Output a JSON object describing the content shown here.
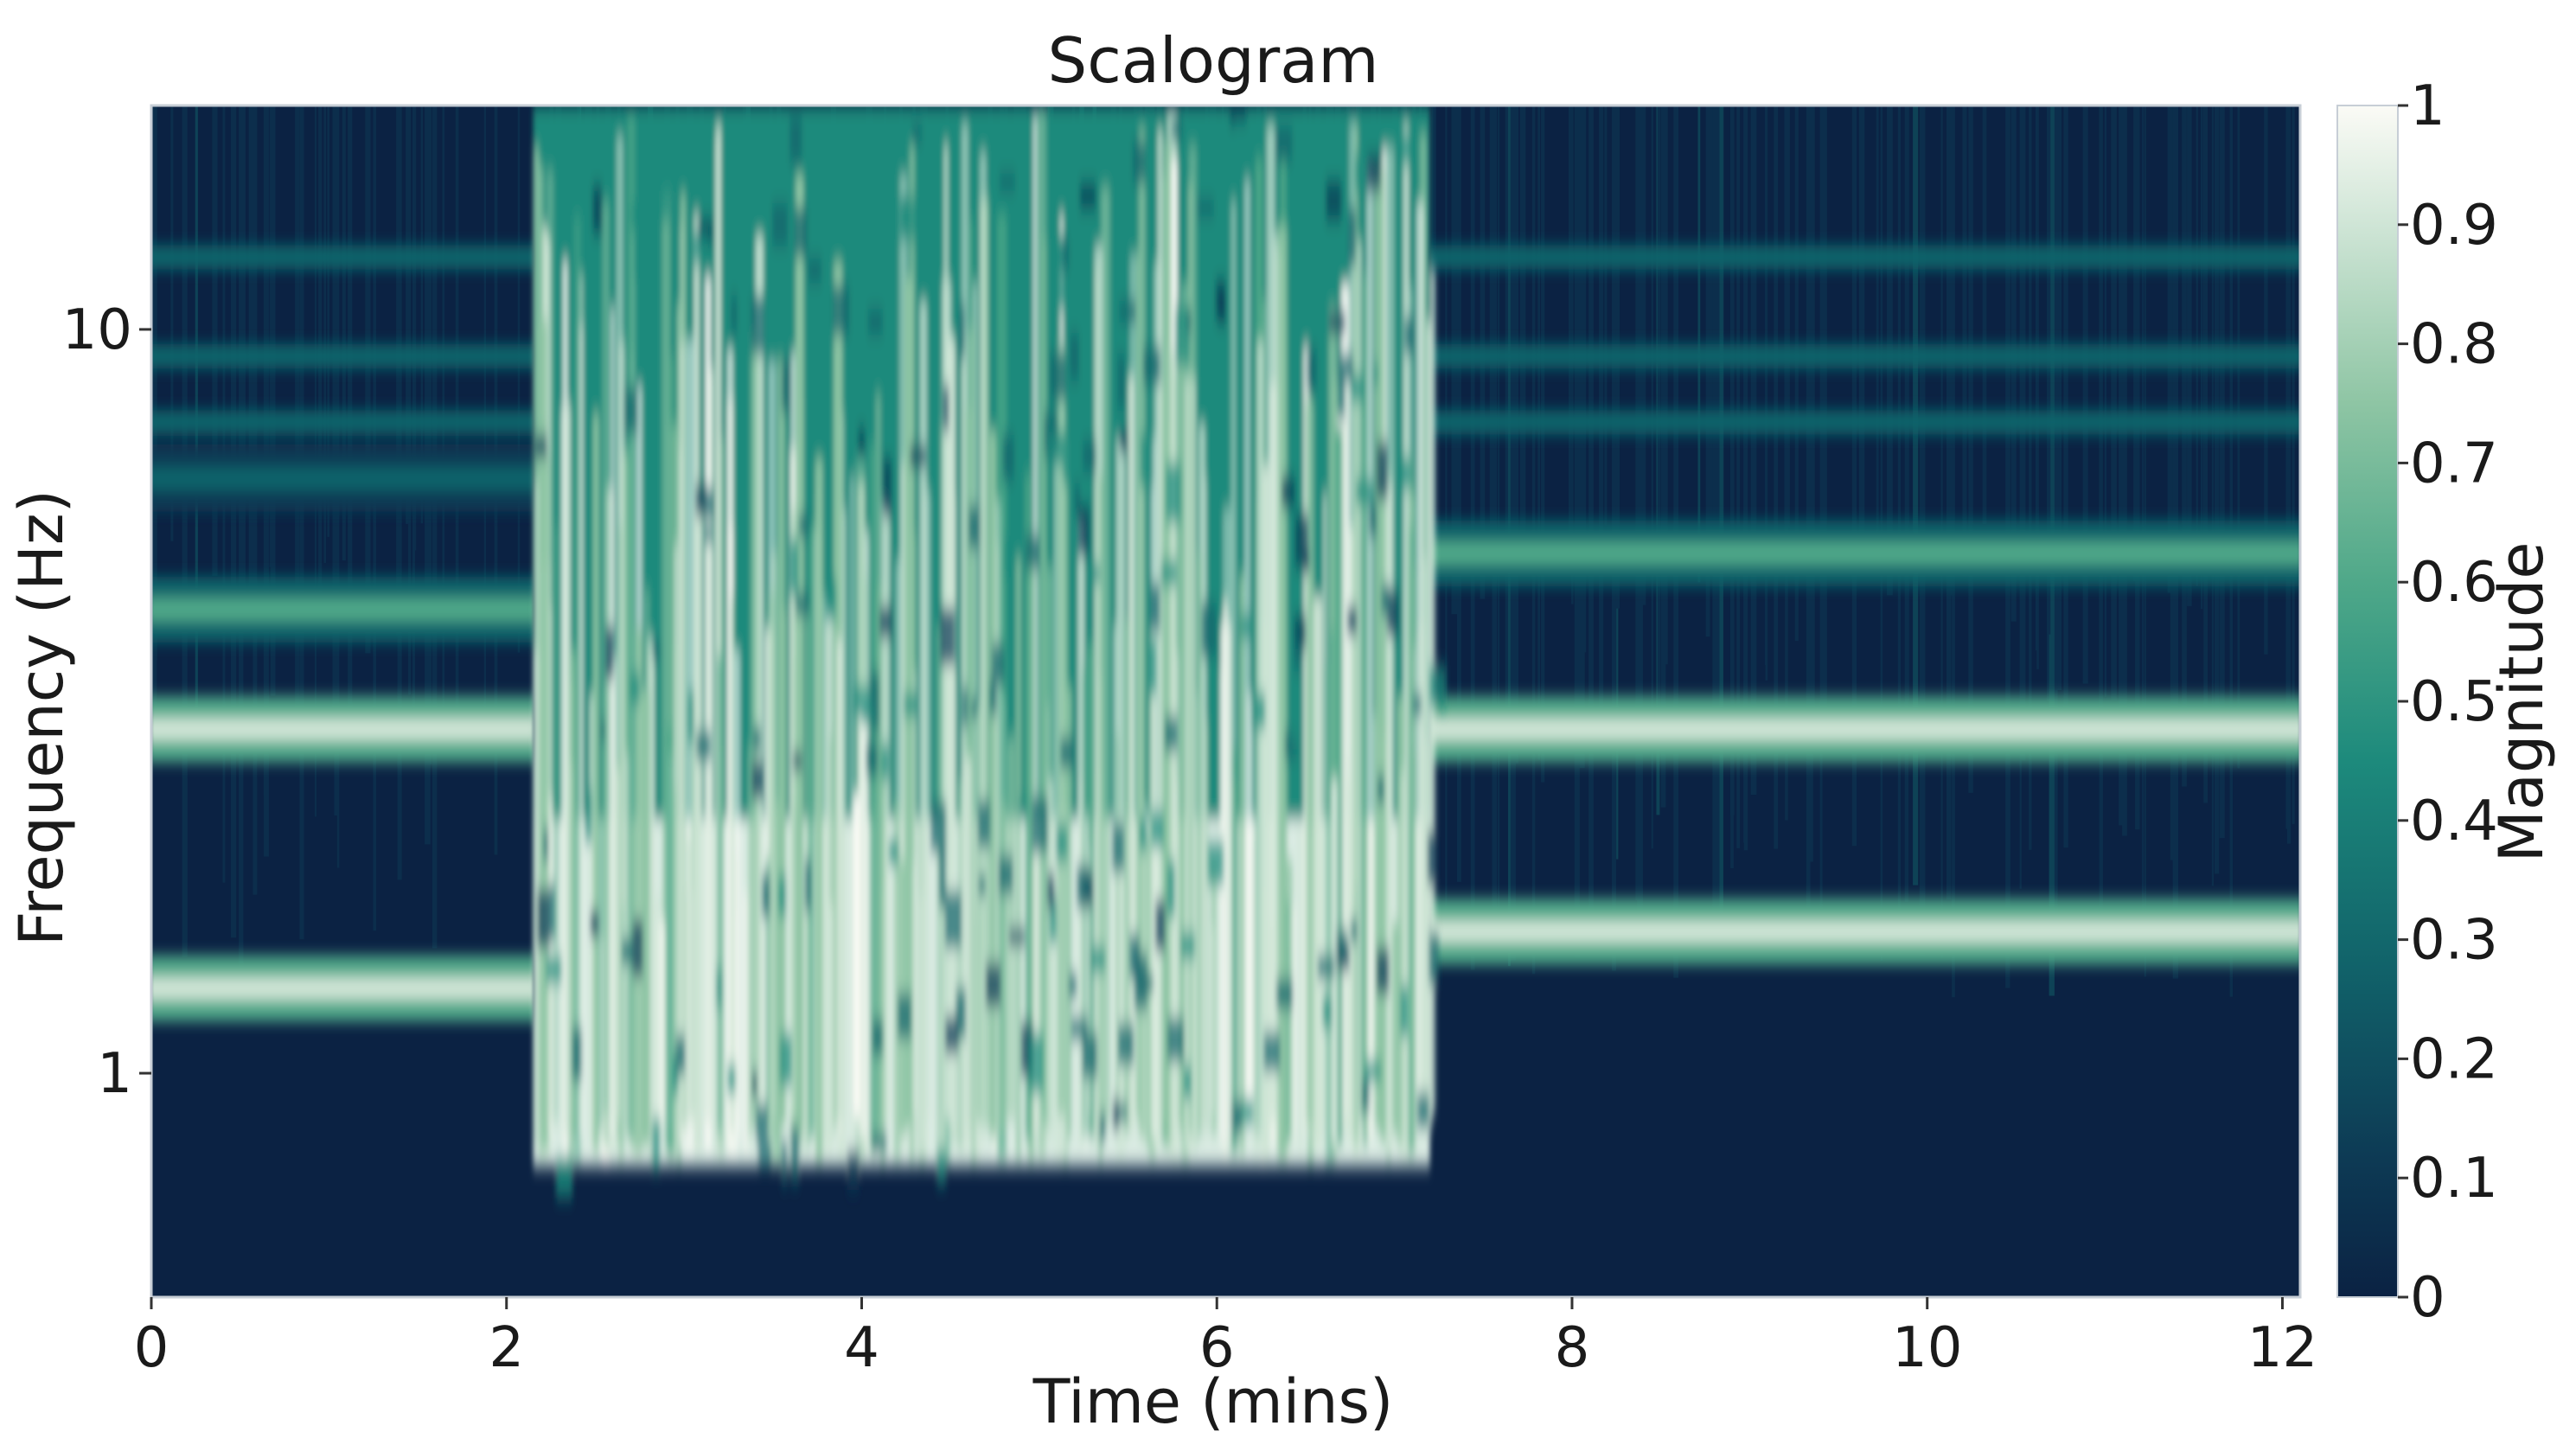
{
  "chart_data": {
    "type": "heatmap",
    "title": "Scalogram",
    "xlabel": "Time (mins)",
    "ylabel": "Frequency (Hz)",
    "xlim": [
      0,
      12.1
    ],
    "x_ticks": [
      0,
      2,
      4,
      6,
      8,
      10,
      12
    ],
    "ylim": [
      0.5,
      20
    ],
    "y_scale": "log",
    "y_ticks": [
      1,
      10
    ],
    "grid": false,
    "colorbar": {
      "label": "Magnitude",
      "range": [
        0,
        1
      ],
      "ticks": [
        0,
        0.1,
        0.2,
        0.3,
        0.4,
        0.5,
        0.6,
        0.7,
        0.8,
        0.9,
        1
      ],
      "colors": [
        "#0b2243",
        "#0d3b55",
        "#11636a",
        "#1d8a7c",
        "#4fa889",
        "#8ec5a4",
        "#cfe5d6",
        "#fbfbf6"
      ]
    },
    "segments": [
      {
        "t_start": 0,
        "t_end": 2.15,
        "bands_hz": [
          1.3,
          2.9,
          4.2,
          6.3
        ]
      },
      {
        "t_start": 2.15,
        "t_end": 7.2,
        "broadband_hz": [
          0.75,
          20
        ]
      },
      {
        "t_start": 7.2,
        "t_end": 12.1,
        "bands_hz": [
          1.55,
          2.9,
          5.0
        ]
      }
    ]
  }
}
